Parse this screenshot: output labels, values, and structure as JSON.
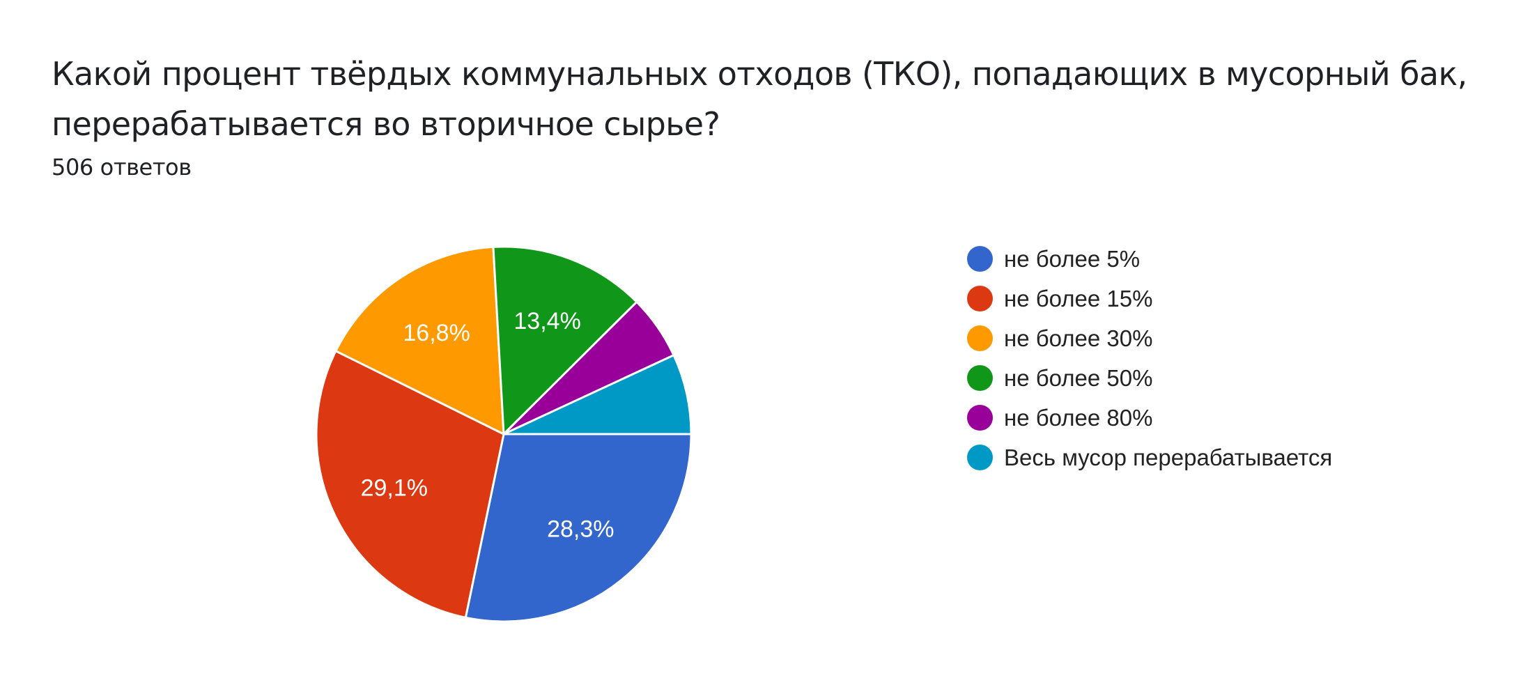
{
  "header": {
    "title": "Какой процент твёрдых коммунальных отходов (ТКО), попадающих в мусорный бак, перерабатывается во вторичное сырье?",
    "responses_label": "506 ответов"
  },
  "chart_data": {
    "type": "pie",
    "title": "Какой процент твёрдых коммунальных отходов (ТКО), попадающих в мусорный бак, перерабатывается во вторичное сырье?",
    "subtitle": "506 ответов",
    "total": 506,
    "start_angle_deg": 90,
    "direction": "clockwise",
    "legend_position": "right",
    "categories": [
      "не более 5%",
      "не более 15%",
      "не более 30%",
      "не более 50%",
      "не более 80%",
      "Весь мусор перерабатывается"
    ],
    "values": [
      143,
      147,
      85,
      68,
      28,
      35
    ],
    "percentages": [
      28.3,
      29.1,
      16.8,
      13.4,
      5.5,
      6.9
    ],
    "slice_labels": [
      "28,3%",
      "29,1%",
      "16,8%",
      "13,4%",
      "",
      ""
    ],
    "colors": [
      "#3366cc",
      "#dc3912",
      "#ff9900",
      "#109618",
      "#990099",
      "#0099c6"
    ]
  },
  "legend": {
    "items": [
      {
        "label": "не более 5%",
        "color": "#3366cc"
      },
      {
        "label": "не более 15%",
        "color": "#dc3912"
      },
      {
        "label": "не более 30%",
        "color": "#ff9900"
      },
      {
        "label": "не более 50%",
        "color": "#109618"
      },
      {
        "label": "не более 80%",
        "color": "#990099"
      },
      {
        "label": "Весь мусор перерабатывается",
        "color": "#0099c6"
      }
    ]
  }
}
